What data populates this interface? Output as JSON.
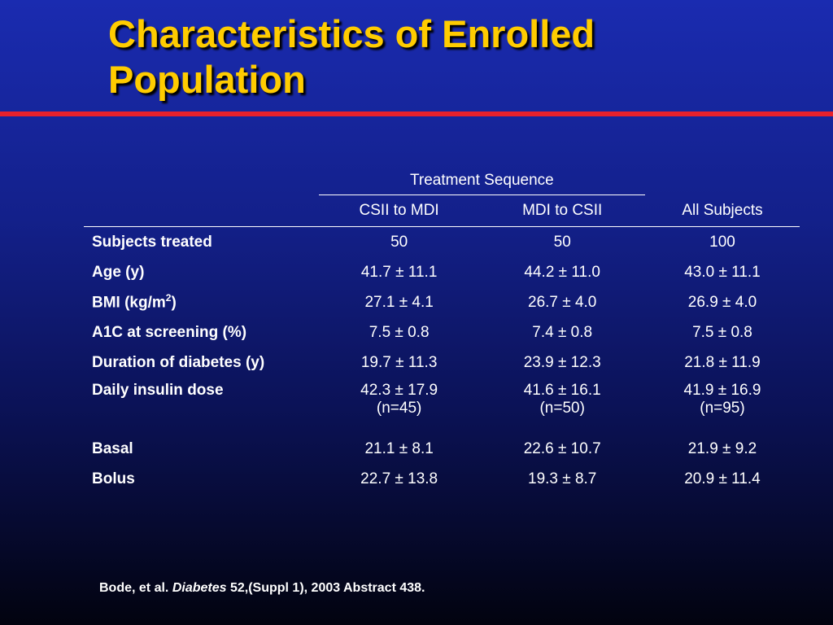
{
  "slide": {
    "title_line1": "Characteristics of Enrolled",
    "title_line2": "Population",
    "colors": {
      "title": "#ffcc00",
      "rule": "#e8212b",
      "background_top": "#1a2bb0",
      "background_bottom": "#02030f"
    }
  },
  "table": {
    "group_header": "Treatment Sequence",
    "columns": [
      "CSII to MDI",
      "MDI to CSII",
      "All Subjects"
    ],
    "rows": [
      {
        "label": "Subjects treated",
        "values": [
          "50",
          "50",
          "100"
        ]
      },
      {
        "label": "Age (y)",
        "values": [
          "41.7 ± 11.1",
          "44.2 ± 11.0",
          "43.0 ± 11.1"
        ]
      },
      {
        "label_prefix": "BMI (kg/m",
        "label_sup": "2",
        "label_suffix": ")",
        "values": [
          "27.1 ± 4.1",
          "26.7 ± 4.0",
          "26.9 ± 4.0"
        ]
      },
      {
        "label": "A1C at screening (%)",
        "values": [
          "7.5 ± 0.8",
          "7.4 ± 0.8",
          "7.5 ± 0.8"
        ]
      },
      {
        "label": "Duration of diabetes (y)",
        "values": [
          "19.7 ± 11.3",
          "23.9 ± 12.3",
          "21.8 ± 11.9"
        ]
      },
      {
        "label": "Daily insulin dose",
        "values": [
          "42.3 ± 17.9",
          "41.6 ± 16.1",
          "41.9 ± 16.9"
        ],
        "notes": [
          "(n=45)",
          "(n=50)",
          "(n=95)"
        ]
      },
      {
        "label": "Basal",
        "values": [
          "21.1 ± 8.1",
          "22.6 ± 10.7",
          "21.9 ± 9.2"
        ]
      },
      {
        "label": "Bolus",
        "values": [
          "22.7 ± 13.8",
          "19.3 ± 8.7",
          "20.9 ± 11.4"
        ]
      }
    ]
  },
  "reference": {
    "authors": "Bode, et al.",
    "journal": "Diabetes",
    "details": "52,(Suppl 1), 2003 Abstract 438."
  }
}
